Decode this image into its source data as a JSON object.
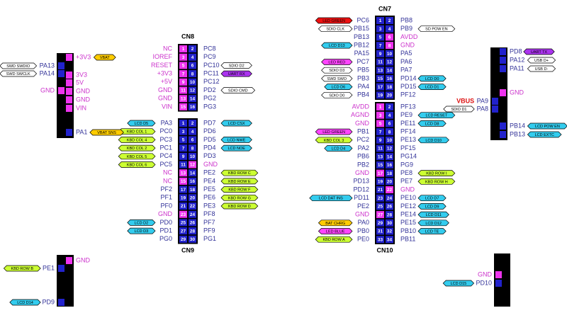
{
  "connectors": [
    {
      "name": "CN8",
      "rows": [
        {
          "l": "NC",
          "p": [
            1,
            2
          ],
          "r": "PC8"
        },
        {
          "l": "IOREF",
          "p": [
            3,
            4
          ],
          "r": "PC9"
        },
        {
          "l": "RESET",
          "p": [
            5,
            6
          ],
          "r": "PC10",
          "rt": {
            "text": "SDIO D2",
            "color": "#ffffff"
          }
        },
        {
          "l": "+3V3",
          "p": [
            7,
            8
          ],
          "r": "PC11",
          "rt": {
            "text": "UART RX",
            "color": "#aa33ee"
          }
        },
        {
          "l": "+5V",
          "p": [
            9,
            10
          ],
          "r": "PC12"
        },
        {
          "l": "GND",
          "p": [
            11,
            12
          ],
          "r": "PD2",
          "rt": {
            "text": "SDIO CMD",
            "color": "#ffffff"
          }
        },
        {
          "l": "GND",
          "p": [
            13,
            14
          ],
          "r": "PG2"
        },
        {
          "l": "VIN",
          "p": [
            15,
            16
          ],
          "r": "PG3"
        }
      ]
    },
    {
      "name": "CN9",
      "rows": [
        {
          "l": "PA3",
          "p": [
            1,
            2
          ],
          "r": "PD7",
          "lt": {
            "text": "LCD D5",
            "color": "#33ccee"
          },
          "rt": {
            "text": "LCD CSX",
            "color": "#33ccee"
          }
        },
        {
          "l": "PC0",
          "p": [
            3,
            4
          ],
          "r": "PD6",
          "lt": {
            "text": "KBD COL 1",
            "color": "#ccff33"
          }
        },
        {
          "l": "PC3",
          "p": [
            5,
            6
          ],
          "r": "PD5",
          "lt": {
            "text": "KBD COL 4",
            "color": "#ccff33"
          },
          "rt": {
            "text": "LCD NWE",
            "color": "#33ccee"
          }
        },
        {
          "l": "PC1",
          "p": [
            7,
            8
          ],
          "r": "PD4",
          "lt": {
            "text": "KBD COL 2",
            "color": "#ccff33"
          },
          "rt": {
            "text": "LCD NOE",
            "color": "#33ccee"
          }
        },
        {
          "l": "PC4",
          "p": [
            9,
            10
          ],
          "r": "PD3",
          "lt": {
            "text": "KBD COL 5",
            "color": "#ccff33"
          }
        },
        {
          "l": "PC5",
          "p": [
            11,
            12
          ],
          "r": "GND",
          "lt": {
            "text": "KBD COL 6",
            "color": "#ccff33"
          }
        },
        {
          "l": "NC",
          "p": [
            13,
            14
          ],
          "r": "PE2",
          "rt": {
            "text": "KBD ROW C",
            "color": "#ccff33"
          }
        },
        {
          "l": "NC",
          "p": [
            15,
            16
          ],
          "r": "PE4",
          "rt": {
            "text": "KBD ROW E",
            "color": "#ccff33"
          }
        },
        {
          "l": "PF2",
          "p": [
            17,
            18
          ],
          "r": "PE5",
          "rt": {
            "text": "KBD ROW F",
            "color": "#ccff33"
          }
        },
        {
          "l": "PF1",
          "p": [
            19,
            20
          ],
          "r": "PE6",
          "rt": {
            "text": "KBD ROW G",
            "color": "#ccff33"
          }
        },
        {
          "l": "PF0",
          "p": [
            21,
            22
          ],
          "r": "PE3",
          "rt": {
            "text": "KBD ROW D",
            "color": "#ccff33"
          }
        },
        {
          "l": "GND",
          "p": [
            23,
            24
          ],
          "r": "PF8"
        },
        {
          "l": "PD0",
          "p": [
            25,
            26
          ],
          "r": "PF7",
          "lt": {
            "text": "LCD D2",
            "color": "#33ccee"
          }
        },
        {
          "l": "PD1",
          "p": [
            27,
            28
          ],
          "r": "PF9",
          "lt": {
            "text": "LCD D3",
            "color": "#33ccee"
          }
        },
        {
          "l": "PG0",
          "p": [
            29,
            30
          ],
          "r": "PG1"
        }
      ]
    },
    {
      "name": "CN7",
      "rows": [
        {
          "l": "PC6",
          "p": [
            1,
            2
          ],
          "r": "PB8",
          "lt": {
            "text": "LED GREEN",
            "color": "#ee1111"
          }
        },
        {
          "l": "PB15",
          "p": [
            3,
            4
          ],
          "r": "PB9",
          "lt": {
            "text": "SDIO CLK",
            "color": "#ffffff"
          },
          "rt": {
            "text": "SD POW EN",
            "color": "#ffffff"
          }
        },
        {
          "l": "PB13",
          "p": [
            5,
            6
          ],
          "r": "AVDD"
        },
        {
          "l": "PB12",
          "p": [
            7,
            8
          ],
          "r": "GND",
          "lt": {
            "text": "LCD D13",
            "color": "#33ccee"
          }
        },
        {
          "l": "PA15",
          "p": [
            9,
            10
          ],
          "r": "PA5"
        },
        {
          "l": "PC7",
          "p": [
            11,
            12
          ],
          "r": "PA6",
          "lt": {
            "text": "LED RED",
            "color": "#ff44ff"
          }
        },
        {
          "l": "PB5",
          "p": [
            13,
            14
          ],
          "r": "PA7",
          "lt": {
            "text": "SDIO D3",
            "color": "#ffffff"
          }
        },
        {
          "l": "PB3",
          "p": [
            15,
            16
          ],
          "r": "PD14",
          "lt": {
            "text": "SWD SWO",
            "color": "#ffffff"
          },
          "rt": {
            "text": "LCD D0",
            "color": "#33ccee"
          }
        },
        {
          "l": "PA4",
          "p": [
            17,
            18
          ],
          "r": "PD15",
          "lt": {
            "text": "LCD D6",
            "color": "#33ccee"
          },
          "rt": {
            "text": "LCD D1",
            "color": "#33ccee"
          }
        },
        {
          "l": "PB4",
          "p": [
            19,
            20
          ],
          "r": "PF12",
          "lt": {
            "text": "SDIO D0",
            "color": "#ffffff"
          }
        }
      ]
    },
    {
      "name": "CN10",
      "rows": [
        {
          "l": "AVDD",
          "p": [
            1,
            2
          ],
          "r": "PF13"
        },
        {
          "l": "AGND",
          "p": [
            3,
            4
          ],
          "r": "PE9",
          "rt": {
            "text": "LCD RESET",
            "color": "#33ccee"
          }
        },
        {
          "l": "GND",
          "p": [
            5,
            6
          ],
          "r": "PE11",
          "rt": {
            "text": "LCD D8",
            "color": "#33ccee"
          }
        },
        {
          "l": "PB1",
          "p": [
            7,
            8
          ],
          "r": "PF14",
          "lt": {
            "text": "LED GREEN",
            "color": "#ff44ff"
          }
        },
        {
          "l": "PC2",
          "p": [
            9,
            10
          ],
          "r": "PE13",
          "lt": {
            "text": "KBD COL 3",
            "color": "#ccff33"
          },
          "rt": {
            "text": "LCD D10",
            "color": "#33ccee"
          }
        },
        {
          "l": "PA2",
          "p": [
            11,
            12
          ],
          "r": "PF15",
          "lt": {
            "text": "LCD D4",
            "color": "#33ccee"
          }
        },
        {
          "l": "PB6",
          "p": [
            13,
            14
          ],
          "r": "PG14"
        },
        {
          "l": "PB2",
          "p": [
            15,
            16
          ],
          "r": "PG9"
        },
        {
          "l": "GND",
          "p": [
            17,
            18
          ],
          "r": "PE8",
          "rt": {
            "text": "KBD ROW I",
            "color": "#ccff33"
          }
        },
        {
          "l": "PD13",
          "p": [
            19,
            20
          ],
          "r": "PE7",
          "rt": {
            "text": "KBD ROW H",
            "color": "#ccff33"
          }
        },
        {
          "l": "PD12",
          "p": [
            21,
            22
          ],
          "r": "GND"
        },
        {
          "l": "PD11",
          "p": [
            23,
            24
          ],
          "r": "PE10",
          "lt": {
            "text": "LCD DAT INS",
            "color": "#33ccee"
          },
          "rt": {
            "text": "LCD D7",
            "color": "#33ccee"
          }
        },
        {
          "l": "PE2",
          "p": [
            25,
            26
          ],
          "r": "PE12",
          "rt": {
            "text": "LCD D9",
            "color": "#33ccee"
          }
        },
        {
          "l": "GND",
          "p": [
            27,
            28
          ],
          "r": "PE14",
          "rt": {
            "text": "LCD D11",
            "color": "#33ccee"
          }
        },
        {
          "l": "PA0",
          "p": [
            29,
            30
          ],
          "r": "PE15",
          "lt": {
            "text": "BAT CHRG",
            "color": "#ffcc00"
          },
          "rt": {
            "text": "LCD D12",
            "color": "#33ccee"
          }
        },
        {
          "l": "PB0",
          "p": [
            31,
            32
          ],
          "r": "PB10",
          "lt": {
            "text": "LED BLUE",
            "color": "#ff44ff"
          },
          "rt": {
            "text": "LCD TE",
            "color": "#33ccee"
          }
        },
        {
          "l": "PE0",
          "p": [
            33,
            34
          ],
          "r": "PB11",
          "lt": {
            "text": "KBD ROW A",
            "color": "#ccff33"
          }
        }
      ]
    }
  ],
  "headers": [
    {
      "items": [
        {
          "label": "+3V3",
          "side": "right",
          "tag": {
            "text": "VBAT",
            "color": "#ffcc00"
          }
        },
        {
          "label": "PA13",
          "side": "left",
          "tag": {
            "text": "SWD SWDIO",
            "color": "#ffffff"
          }
        },
        {
          "label": "PA14",
          "side": "left",
          "tag": {
            "text": "SWD SWCLK",
            "color": "#ffffff"
          }
        },
        {
          "label": "3V3",
          "side": "right"
        },
        {
          "label": "5V",
          "side": "right"
        },
        {
          "label": "GND",
          "side": "left"
        },
        {
          "label": "GND",
          "side": "right"
        },
        {
          "label": "GND",
          "side": "right"
        },
        {
          "label": "VIN",
          "side": "right"
        },
        {
          "label": "PA1",
          "side": "right",
          "tag": {
            "text": "VBAT SNS",
            "color": "#ffcc00"
          }
        }
      ]
    },
    {
      "items": [
        {
          "label": "PD8",
          "side": "right",
          "tag": {
            "text": "UART TX",
            "color": "#aa33ee"
          }
        },
        {
          "label": "PA12",
          "side": "right",
          "tag": {
            "text": "USB D+",
            "color": "#ffffff"
          }
        },
        {
          "label": "PA11",
          "side": "right",
          "tag": {
            "text": "USB D-",
            "color": "#ffffff"
          }
        },
        {
          "label": "GND",
          "side": "right"
        },
        {
          "label": "PA9",
          "side": "left",
          "note": "VBUS"
        },
        {
          "label": "PA8",
          "side": "left",
          "tag": {
            "text": "SDIO D1",
            "color": "#ffffff"
          }
        },
        {
          "label": "PB14",
          "side": "right",
          "tag": {
            "text": "LCD POW EN",
            "color": "#33ccee"
          }
        },
        {
          "label": "PB13",
          "side": "right",
          "tag": {
            "text": "LCD EXTC",
            "color": "#33ccee"
          }
        }
      ]
    },
    {
      "items": [
        {
          "label": "GND",
          "side": "right"
        },
        {
          "label": "PE1",
          "side": "left",
          "tag": {
            "text": "KBD ROW B",
            "color": "#ccff33"
          }
        },
        {
          "label": "PD9",
          "side": "left",
          "tag": {
            "text": "LCD D14",
            "color": "#33ccee"
          }
        }
      ]
    },
    {
      "items": [
        {
          "label": "GND",
          "side": "left"
        },
        {
          "label": "PD10",
          "side": "left",
          "tag": {
            "text": "LCD D15",
            "color": "#33ccee"
          }
        }
      ]
    }
  ]
}
